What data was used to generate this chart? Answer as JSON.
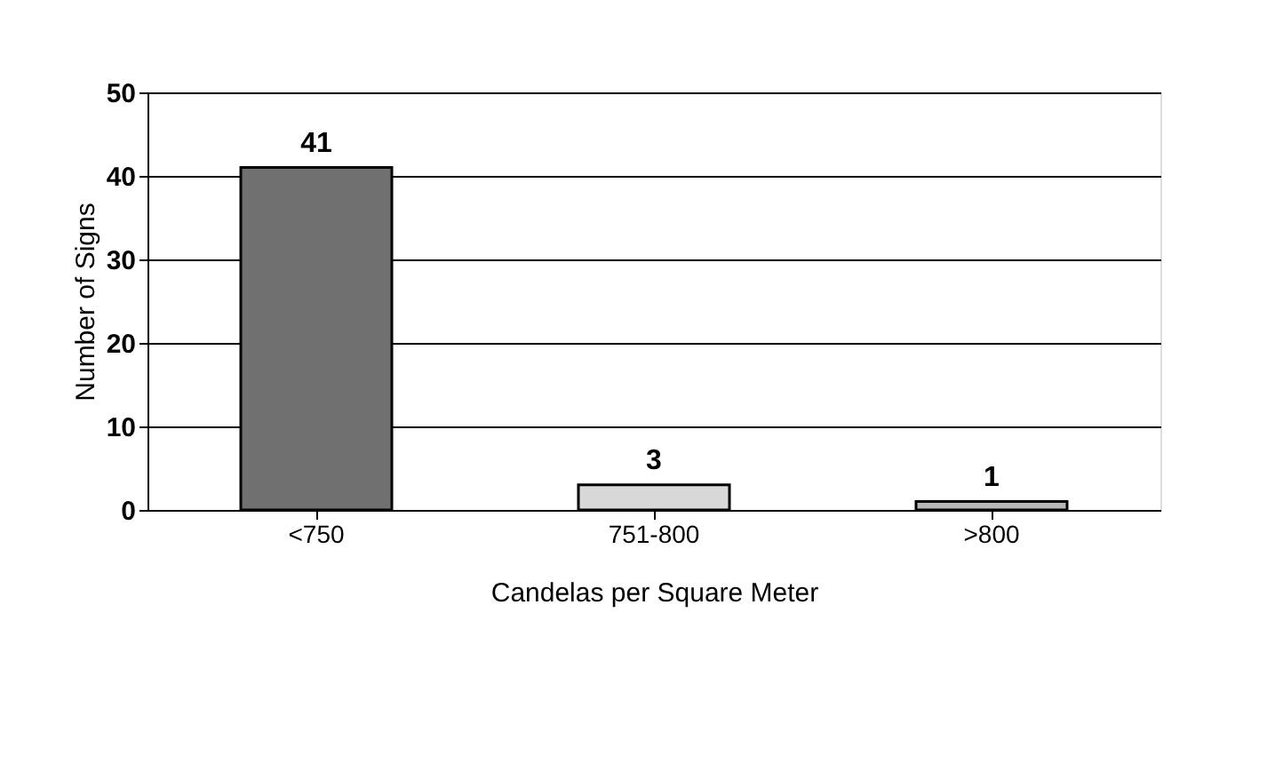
{
  "chart_data": {
    "type": "bar",
    "categories": [
      "<750",
      "751-800",
      ">800"
    ],
    "values": [
      41,
      3,
      1
    ],
    "colors": [
      "#707070",
      "#d8d8d8",
      "#b8b8b8"
    ],
    "xlabel": "Candelas per Square Meter",
    "ylabel": "Number of Signs",
    "ylim": [
      0,
      50
    ],
    "yticks": [
      0,
      10,
      20,
      30,
      40,
      50
    ],
    "grid": "y",
    "data_labels": true
  }
}
